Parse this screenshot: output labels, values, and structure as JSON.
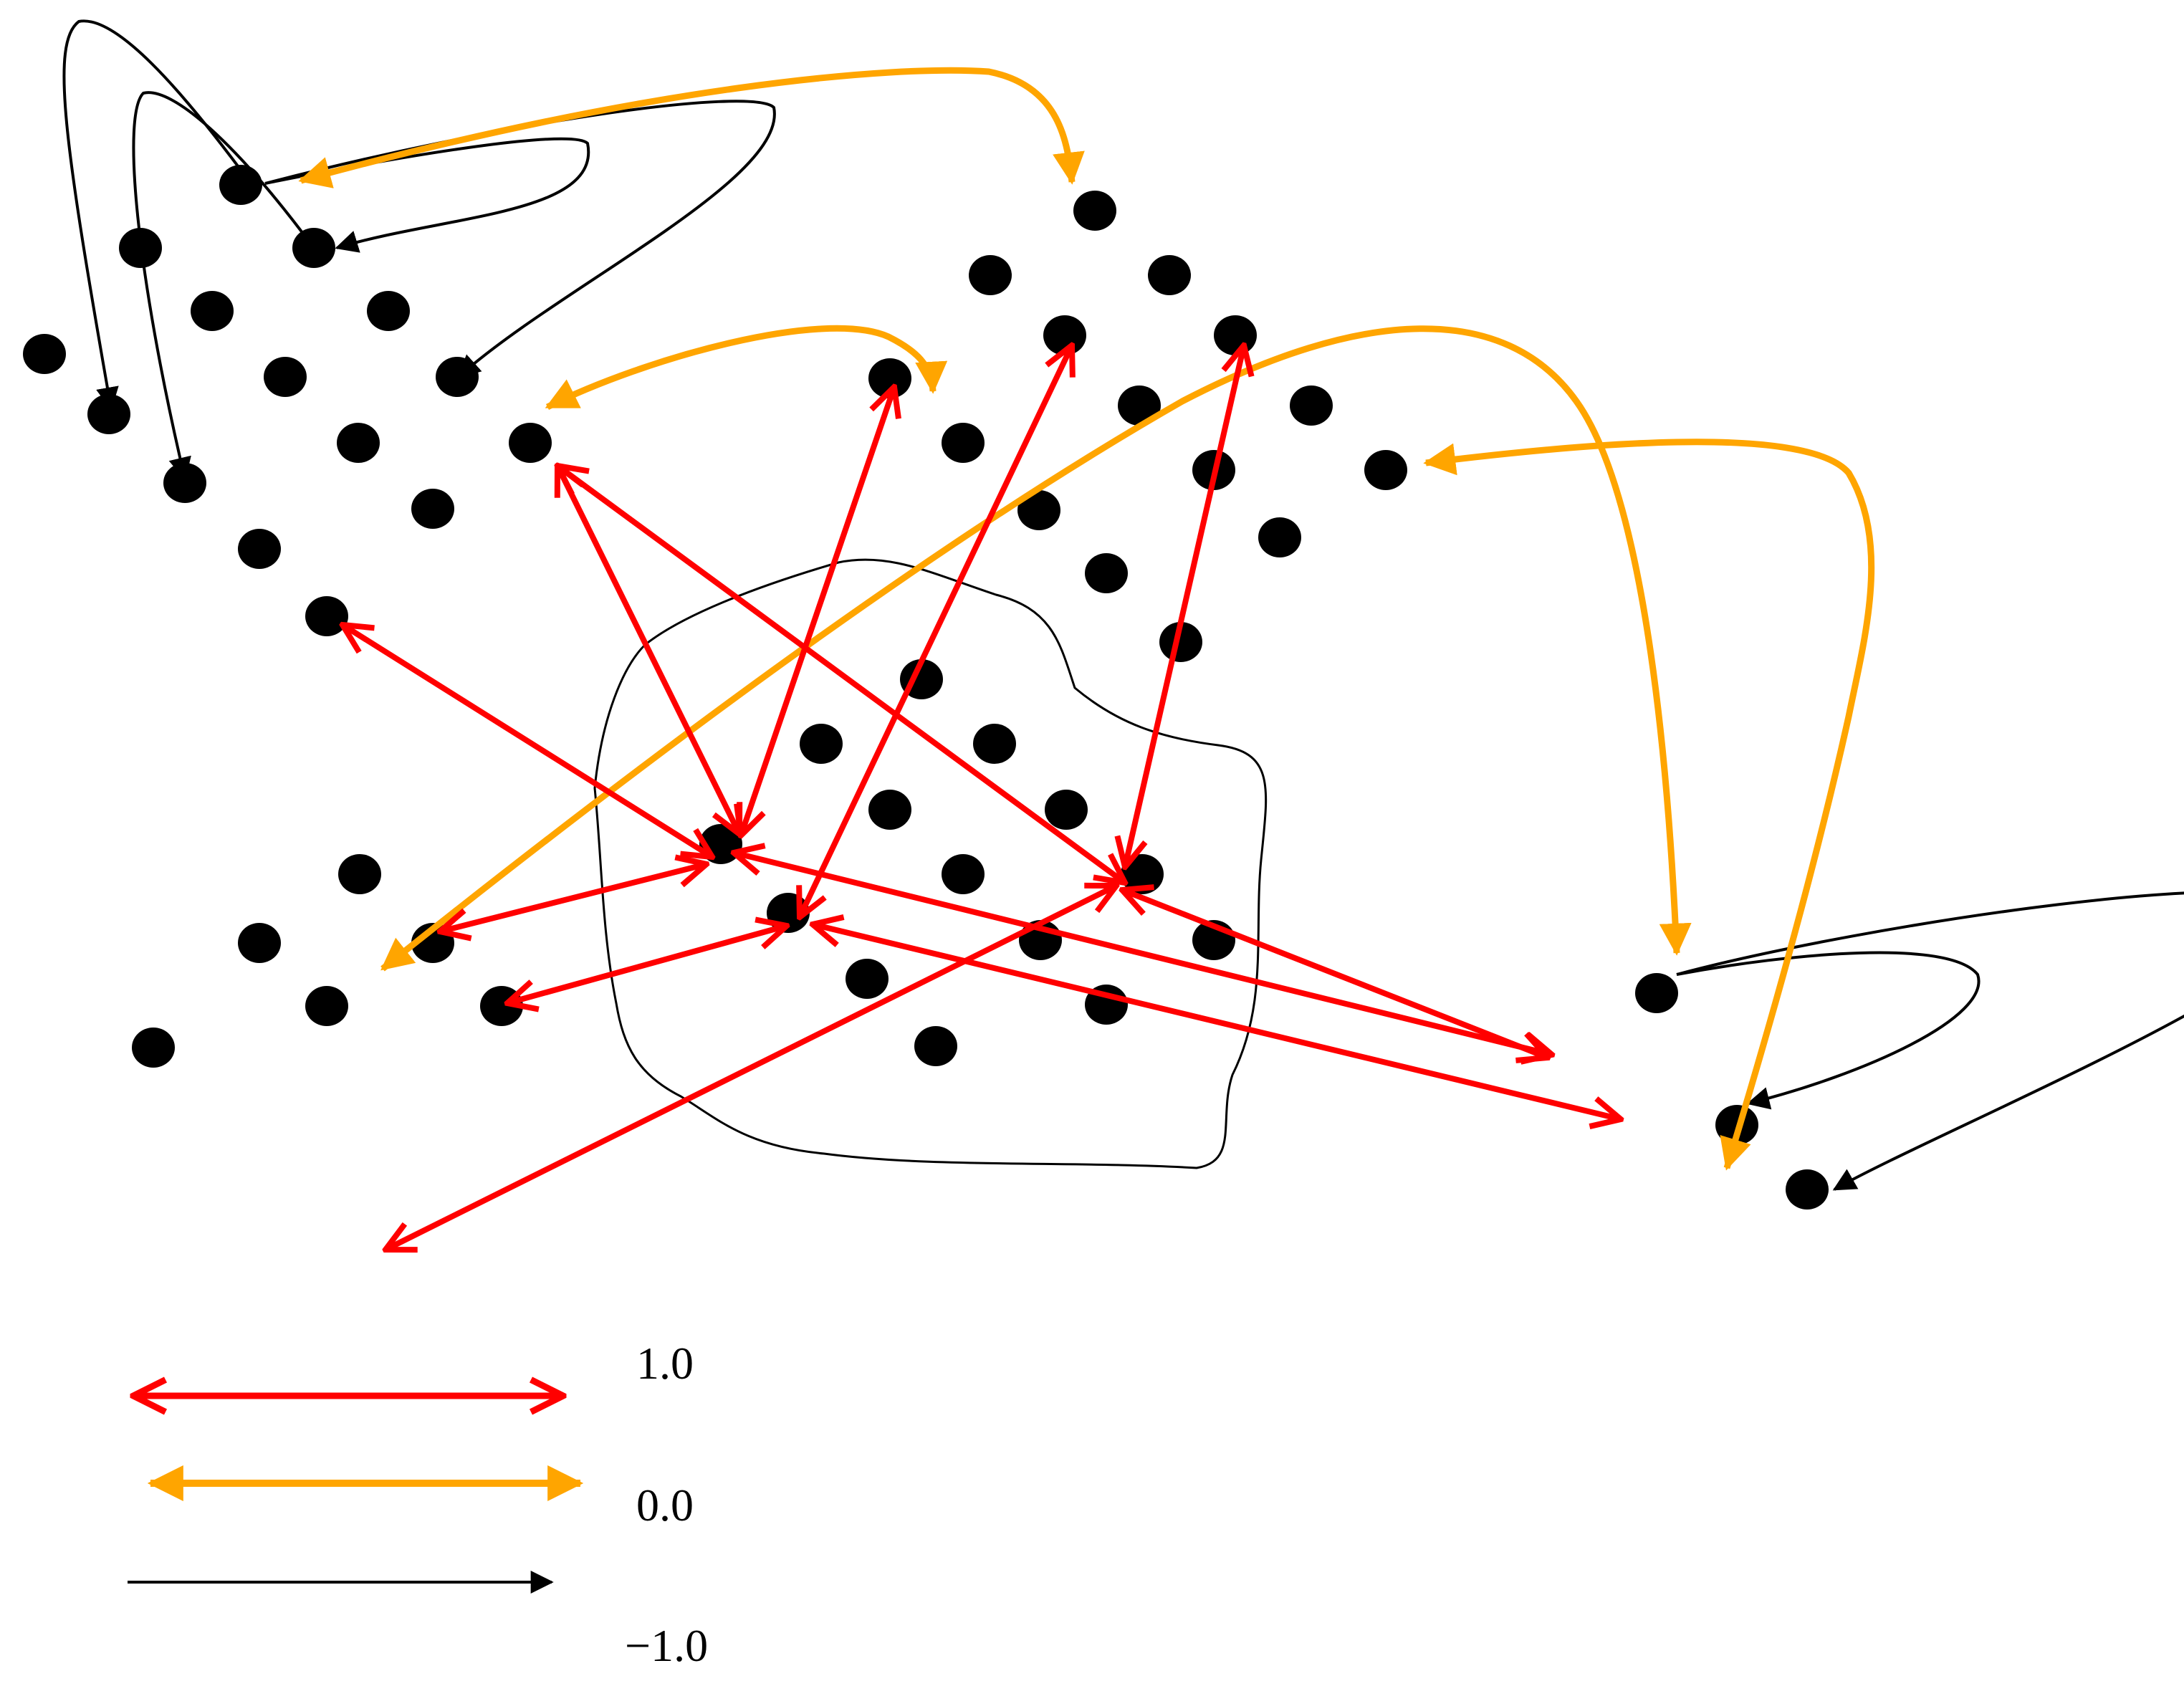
{
  "colors": {
    "positive": "#ff0000",
    "neutral": "#ffa500",
    "negative": "#000000",
    "node": "#000000",
    "boundary": "#000000"
  },
  "legend": [
    {
      "style": "positive",
      "label": "1.0"
    },
    {
      "style": "neutral",
      "label": "0.0"
    },
    {
      "style": "negative",
      "label": "−1.0"
    }
  ]
}
